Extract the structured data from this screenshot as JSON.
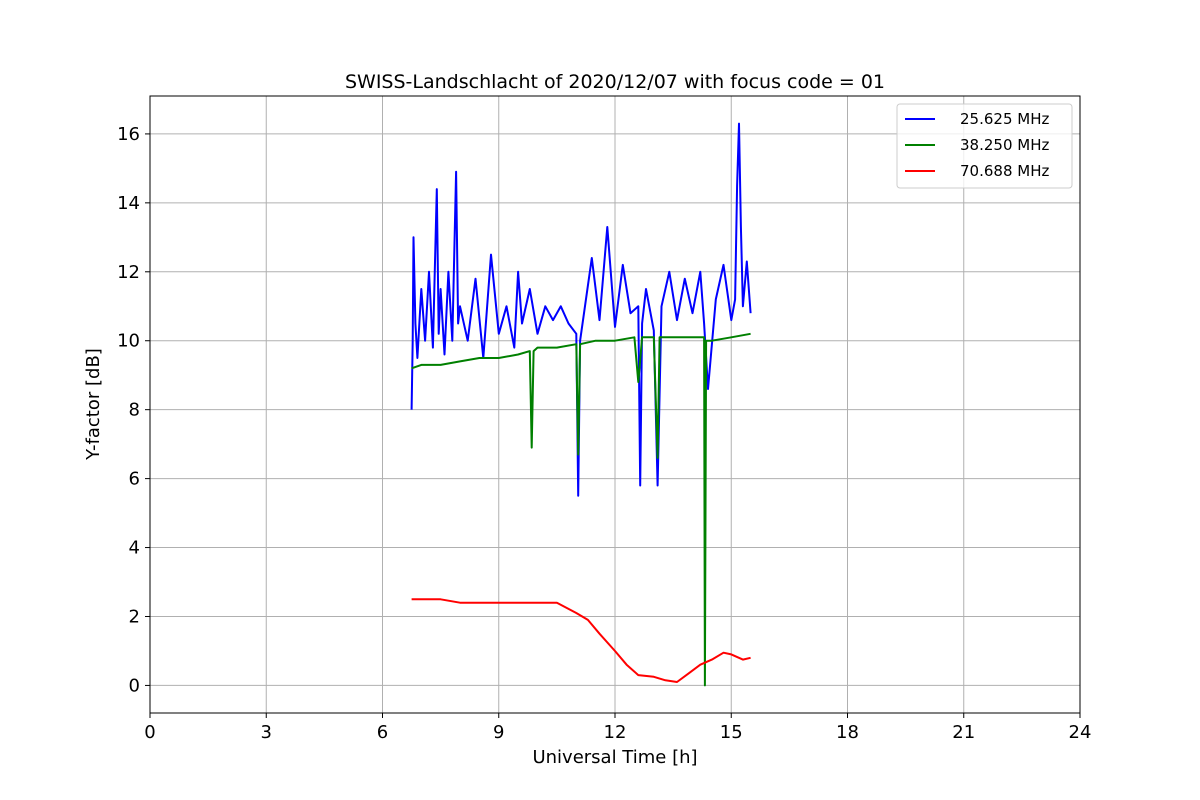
{
  "chart_data": {
    "type": "line",
    "title": "SWISS-Landschlacht of 2020/12/07 with focus code = 01",
    "xlabel": "Universal Time [h]",
    "ylabel": "Y-factor [dB]",
    "xlim": [
      0,
      24
    ],
    "ylim": [
      -0.8,
      17.1
    ],
    "xticks": [
      0,
      3,
      6,
      9,
      12,
      15,
      18,
      21,
      24
    ],
    "yticks": [
      0,
      2,
      4,
      6,
      8,
      10,
      12,
      14,
      16
    ],
    "grid": true,
    "legend_position": "top-right",
    "series": [
      {
        "name": "25.625 MHz",
        "color": "#0000ff",
        "x": [
          6.75,
          6.78,
          6.8,
          6.85,
          6.9,
          7.0,
          7.1,
          7.2,
          7.3,
          7.4,
          7.45,
          7.5,
          7.6,
          7.7,
          7.8,
          7.9,
          7.95,
          8.0,
          8.2,
          8.4,
          8.6,
          8.8,
          9.0,
          9.2,
          9.4,
          9.5,
          9.6,
          9.8,
          10.0,
          10.2,
          10.4,
          10.6,
          10.8,
          11.0,
          11.05,
          11.1,
          11.2,
          11.4,
          11.6,
          11.8,
          12.0,
          12.2,
          12.4,
          12.6,
          12.65,
          12.7,
          12.8,
          13.0,
          13.1,
          13.2,
          13.4,
          13.6,
          13.8,
          14.0,
          14.2,
          14.3,
          14.4,
          14.6,
          14.8,
          15.0,
          15.1,
          15.15,
          15.2,
          15.25,
          15.3,
          15.4,
          15.5
        ],
        "y": [
          8.0,
          10.0,
          13.0,
          10.5,
          9.5,
          11.5,
          10.0,
          12.0,
          9.8,
          14.4,
          10.2,
          11.5,
          9.6,
          12.0,
          10.0,
          14.9,
          10.5,
          11.0,
          10.0,
          11.8,
          9.5,
          12.5,
          10.2,
          11.0,
          9.8,
          12.0,
          10.5,
          11.5,
          10.2,
          11.0,
          10.6,
          11.0,
          10.5,
          10.2,
          5.5,
          10.0,
          10.8,
          12.4,
          10.6,
          13.3,
          10.4,
          12.2,
          10.8,
          11.0,
          5.8,
          10.5,
          11.5,
          10.3,
          5.8,
          11.0,
          12.0,
          10.6,
          11.8,
          10.8,
          12.0,
          10.5,
          8.6,
          11.2,
          12.2,
          10.6,
          11.2,
          14.5,
          16.3,
          13.3,
          11.0,
          12.3,
          10.8
        ]
      },
      {
        "name": "38.250 MHz",
        "color": "#008000",
        "x": [
          6.75,
          7.0,
          7.5,
          8.0,
          8.5,
          9.0,
          9.5,
          9.8,
          9.85,
          9.9,
          10.0,
          10.5,
          11.0,
          11.05,
          11.1,
          11.5,
          12.0,
          12.5,
          12.6,
          12.7,
          13.0,
          13.1,
          13.15,
          13.5,
          14.0,
          14.2,
          14.3,
          14.32,
          14.35,
          14.5,
          15.0,
          15.5
        ],
        "y": [
          9.2,
          9.3,
          9.3,
          9.4,
          9.5,
          9.5,
          9.6,
          9.7,
          6.9,
          9.7,
          9.8,
          9.8,
          9.9,
          6.7,
          9.9,
          10.0,
          10.0,
          10.1,
          8.8,
          10.1,
          10.1,
          6.6,
          10.1,
          10.1,
          10.1,
          10.1,
          10.1,
          0.0,
          10.0,
          10.0,
          10.1,
          10.2
        ]
      },
      {
        "name": "70.688 MHz",
        "color": "#ff0000",
        "x": [
          6.75,
          7.0,
          7.5,
          8.0,
          8.5,
          9.0,
          9.5,
          10.0,
          10.5,
          11.0,
          11.3,
          11.6,
          12.0,
          12.3,
          12.6,
          13.0,
          13.3,
          13.6,
          13.9,
          14.2,
          14.5,
          14.8,
          15.0,
          15.3,
          15.5
        ],
        "y": [
          2.5,
          2.5,
          2.5,
          2.4,
          2.4,
          2.4,
          2.4,
          2.4,
          2.4,
          2.1,
          1.9,
          1.5,
          1.0,
          0.6,
          0.3,
          0.25,
          0.15,
          0.1,
          0.35,
          0.6,
          0.75,
          0.95,
          0.9,
          0.75,
          0.8
        ]
      }
    ]
  }
}
